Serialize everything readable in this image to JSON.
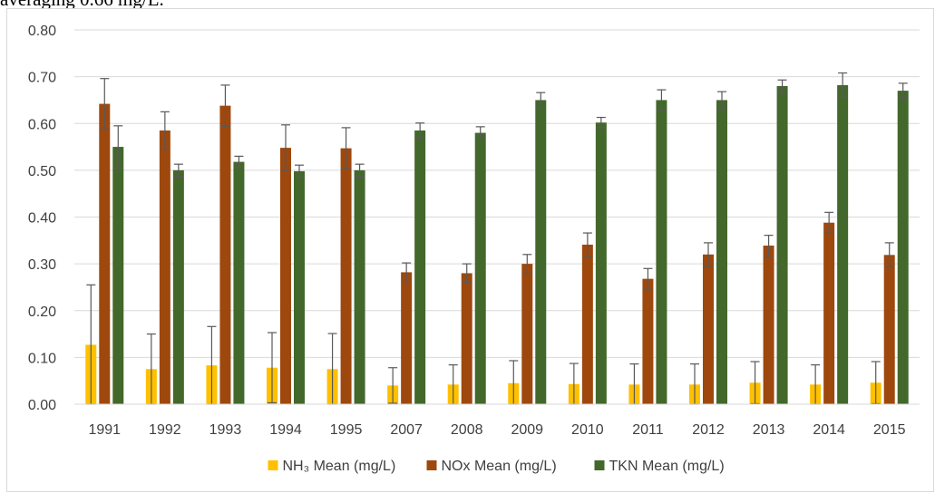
{
  "caption_fragment": "averaging 0.66 mg/L.",
  "colors": {
    "nh3": "#ffc000",
    "nox": "#9e480e",
    "tkn": "#43682b",
    "grid": "#d9d9d9",
    "error_bar": "#595959",
    "text": "#404040"
  },
  "chart_data": {
    "type": "bar",
    "title": "",
    "xlabel": "",
    "ylabel": "",
    "ylim": [
      0,
      0.8
    ],
    "yticks": [
      "0.00",
      "0.10",
      "0.20",
      "0.30",
      "0.40",
      "0.50",
      "0.60",
      "0.70",
      "0.80"
    ],
    "grid": true,
    "legend_position": "bottom",
    "error_bars": true,
    "categories": [
      "1991",
      "1992",
      "1993",
      "1994",
      "1995",
      "2007",
      "2008",
      "2009",
      "2010",
      "2011",
      "2012",
      "2013",
      "2014",
      "2015"
    ],
    "series": [
      {
        "key": "nh3",
        "name": "NH₃ Mean (mg/L)",
        "values": [
          0.127,
          0.075,
          0.083,
          0.078,
          0.075,
          0.04,
          0.042,
          0.045,
          0.043,
          0.042,
          0.042,
          0.046,
          0.042,
          0.046
        ],
        "error": [
          0.128,
          0.075,
          0.083,
          0.075,
          0.076,
          0.038,
          0.042,
          0.048,
          0.044,
          0.044,
          0.044,
          0.045,
          0.042,
          0.045
        ]
      },
      {
        "key": "nox",
        "name": "NOx Mean (mg/L)",
        "values": [
          0.642,
          0.585,
          0.638,
          0.548,
          0.547,
          0.282,
          0.28,
          0.3,
          0.341,
          0.268,
          0.32,
          0.339,
          0.388,
          0.319
        ],
        "error": [
          0.054,
          0.04,
          0.044,
          0.049,
          0.044,
          0.02,
          0.02,
          0.02,
          0.025,
          0.022,
          0.025,
          0.022,
          0.022,
          0.026
        ]
      },
      {
        "key": "tkn",
        "name": "TKN Mean (mg/L)",
        "values": [
          0.55,
          0.5,
          0.518,
          0.498,
          0.5,
          0.585,
          0.58,
          0.65,
          0.602,
          0.65,
          0.65,
          0.68,
          0.682,
          0.67
        ],
        "error": [
          0.045,
          0.013,
          0.012,
          0.013,
          0.013,
          0.016,
          0.013,
          0.016,
          0.011,
          0.022,
          0.018,
          0.013,
          0.026,
          0.016
        ]
      }
    ]
  }
}
